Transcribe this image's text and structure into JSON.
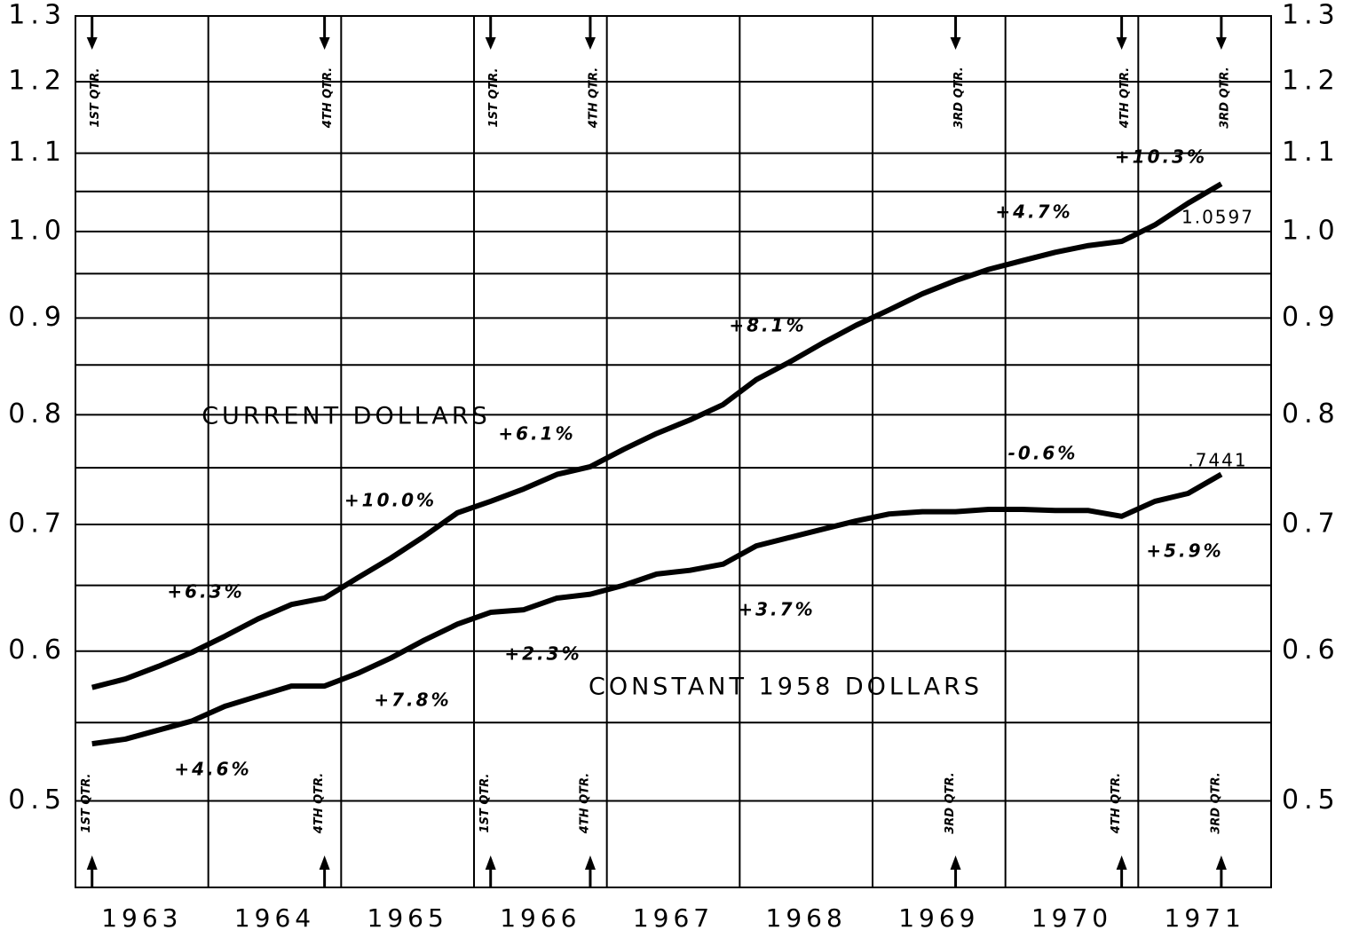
{
  "chart_data": {
    "type": "line",
    "log_y": true,
    "grid": true,
    "categories": [
      "1963",
      "1964",
      "1965",
      "1966",
      "1967",
      "1968",
      "1969",
      "1970",
      "1971"
    ],
    "xlim": [
      1963,
      1972
    ],
    "xticks": [
      1963,
      1964,
      1965,
      1966,
      1967,
      1968,
      1969,
      1970,
      1971,
      1972
    ],
    "ylim": [
      0.45,
      1.3
    ],
    "yticks": [
      0.5,
      0.6,
      0.7,
      0.8,
      0.9,
      {
        "value": 1,
        "label": "1.0"
      },
      1.1,
      1.2,
      1.3
    ],
    "minor_yticks": [
      0.55,
      0.65,
      0.75,
      0.85,
      0.95,
      1.05
    ],
    "x": [
      1963.125,
      1963.375,
      1963.625,
      1963.875,
      1964.125,
      1964.375,
      1964.625,
      1964.875,
      1965.125,
      1965.375,
      1965.625,
      1965.875,
      1966.125,
      1966.375,
      1966.625,
      1966.875,
      1967.125,
      1967.375,
      1967.625,
      1967.875,
      1968.125,
      1968.375,
      1968.625,
      1968.875,
      1969.125,
      1969.375,
      1969.625,
      1969.875,
      1970.125,
      1970.375,
      1970.625,
      1970.875,
      1971.125,
      1971.375,
      1971.625
    ],
    "series": [
      {
        "name": "CURRENT DOLLARS",
        "color": "#000000",
        "end_label": "1.0597",
        "values": [
          0.574,
          0.58,
          0.589,
          0.599,
          0.611,
          0.624,
          0.635,
          0.64,
          0.656,
          0.672,
          0.69,
          0.71,
          0.72,
          0.731,
          0.744,
          0.751,
          0.767,
          0.782,
          0.795,
          0.81,
          0.835,
          0.853,
          0.873,
          0.892,
          0.909,
          0.927,
          0.942,
          0.955,
          0.965,
          0.975,
          0.983,
          0.988,
          1.008,
          1.035,
          1.0597
        ]
      },
      {
        "name": "CONSTANT 1958 DOLLARS",
        "color": "#000000",
        "end_label": ".7441",
        "values": [
          0.536,
          0.539,
          0.545,
          0.551,
          0.561,
          0.568,
          0.575,
          0.575,
          0.584,
          0.595,
          0.608,
          0.62,
          0.629,
          0.631,
          0.64,
          0.643,
          0.65,
          0.659,
          0.662,
          0.667,
          0.682,
          0.689,
          0.696,
          0.703,
          0.709,
          0.711,
          0.711,
          0.713,
          0.713,
          0.712,
          0.712,
          0.707,
          0.72,
          0.727,
          0.7441
        ]
      }
    ],
    "markers": [
      {
        "x": 1963.125,
        "label": "1ST QTR."
      },
      {
        "x": 1964.875,
        "label": "4TH QTR."
      },
      {
        "x": 1966.125,
        "label": "1ST QTR."
      },
      {
        "x": 1966.875,
        "label": "4TH QTR."
      },
      {
        "x": 1969.625,
        "label": "3RD QTR."
      },
      {
        "x": 1970.875,
        "label": "4TH QTR."
      },
      {
        "x": 1971.625,
        "label": "3RD QTR."
      }
    ],
    "annotations": [
      "+6.3%",
      "+10.0%",
      "+6.1%",
      "+8.1%",
      "+4.7%",
      "+10.3%",
      "+4.6%",
      "+7.8%",
      "+2.3%",
      "+3.7%",
      "-0.6%",
      "+5.9%"
    ]
  }
}
